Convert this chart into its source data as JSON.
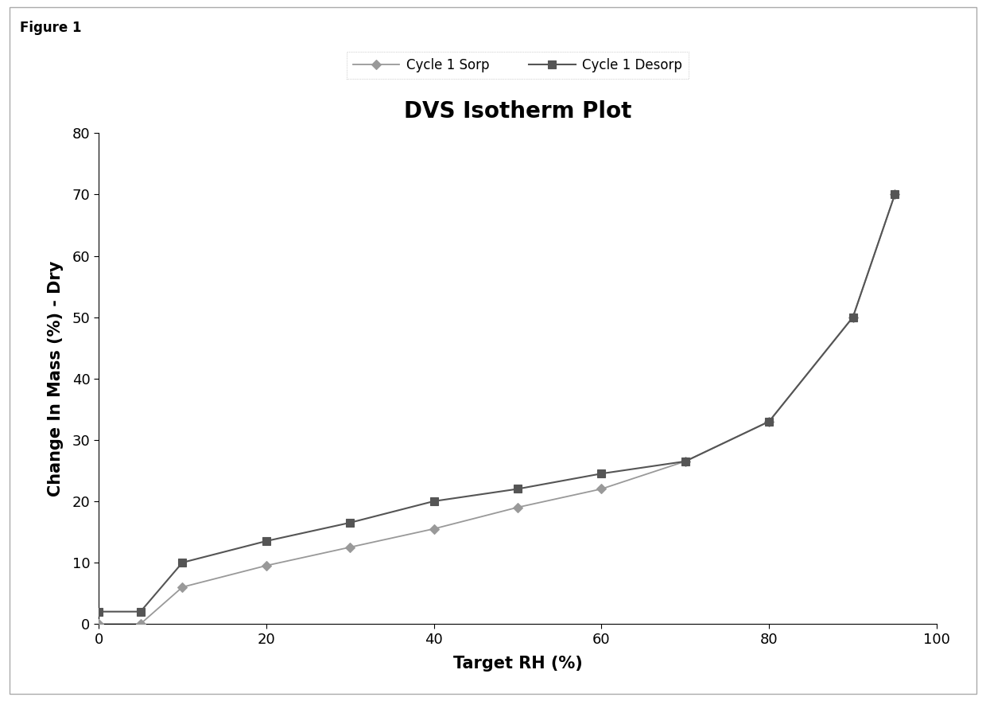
{
  "title": "DVS Isotherm Plot",
  "xlabel": "Target RH (%)",
  "ylabel": "Change In Mass (%) - Dry",
  "figure_label": "Figure 1",
  "sorp_x": [
    0,
    5,
    10,
    20,
    30,
    40,
    50,
    60,
    70,
    80,
    90,
    95
  ],
  "sorp_y": [
    0,
    0,
    6,
    9.5,
    12.5,
    15.5,
    19,
    22,
    26.5,
    33,
    50,
    70
  ],
  "desorp_x": [
    0,
    5,
    10,
    20,
    30,
    40,
    50,
    60,
    70,
    80,
    90,
    95
  ],
  "desorp_y": [
    2,
    2,
    10,
    13.5,
    16.5,
    20,
    22,
    24.5,
    26.5,
    33,
    50,
    70
  ],
  "sorp_color": "#999999",
  "desorp_color": "#555555",
  "sorp_label": "Cycle 1 Sorp",
  "desorp_label": "Cycle 1 Desorp",
  "xlim": [
    0,
    100
  ],
  "ylim": [
    0,
    80
  ],
  "xticks": [
    0,
    20,
    40,
    60,
    80,
    100
  ],
  "yticks": [
    0,
    10,
    20,
    30,
    40,
    50,
    60,
    70,
    80
  ],
  "background_color": "#ffffff",
  "plot_bg_color": "#ffffff",
  "title_fontsize": 20,
  "label_fontsize": 15,
  "tick_fontsize": 13,
  "legend_fontsize": 12,
  "outer_border_color": "#888888",
  "inner_border_color": "#000000"
}
